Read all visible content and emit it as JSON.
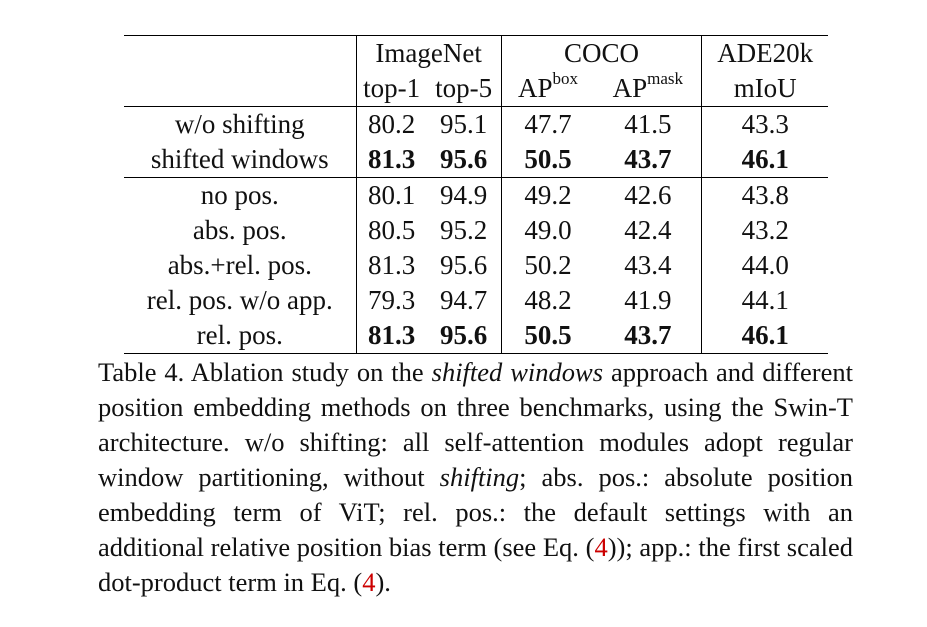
{
  "table": {
    "headers": {
      "imagenet": "ImageNet",
      "coco": "COCO",
      "ade": "ADE20k",
      "top1": "top-1",
      "top5": "top-5",
      "ap": "AP",
      "box": "box",
      "mask": "mask",
      "miou": "mIoU"
    },
    "groups": [
      {
        "rows": [
          {
            "name": "w/o shifting",
            "vals": [
              "80.2",
              "95.1",
              "47.7",
              "41.5",
              "43.3"
            ],
            "bold": false
          },
          {
            "name": "shifted windows",
            "vals": [
              "81.3",
              "95.6",
              "50.5",
              "43.7",
              "46.1"
            ],
            "bold": true
          }
        ]
      },
      {
        "rows": [
          {
            "name": "no pos.",
            "vals": [
              "80.1",
              "94.9",
              "49.2",
              "42.6",
              "43.8"
            ],
            "bold": false
          },
          {
            "name": "abs. pos.",
            "vals": [
              "80.5",
              "95.2",
              "49.0",
              "42.4",
              "43.2"
            ],
            "bold": false
          },
          {
            "name": "abs.+rel. pos.",
            "vals": [
              "81.3",
              "95.6",
              "50.2",
              "43.4",
              "44.0"
            ],
            "bold": false
          },
          {
            "name": "rel. pos. w/o app.",
            "vals": [
              "79.3",
              "94.7",
              "48.2",
              "41.9",
              "44.1"
            ],
            "bold": false
          },
          {
            "name": "rel. pos.",
            "vals": [
              "81.3",
              "95.6",
              "50.5",
              "43.7",
              "46.1"
            ],
            "bold": true
          }
        ]
      }
    ]
  },
  "caption": {
    "p1": "Table 4. Ablation study on the ",
    "i1": "shifted windows",
    "p2": " approach and different position embedding methods on three benchmarks, using the Swin-T architecture.  w/o shifting: all self-attention modules adopt regular window partitioning, without ",
    "i2": "shifting",
    "p3": "; abs. pos.: absolute position embedding term of ViT; rel. pos.: the default settings with an additional relative position bias term (see Eq. (",
    "ref1": "4",
    "p4": ")); app.: the first scaled dot-product term in Eq. (",
    "ref2": "4",
    "p5": ")."
  }
}
